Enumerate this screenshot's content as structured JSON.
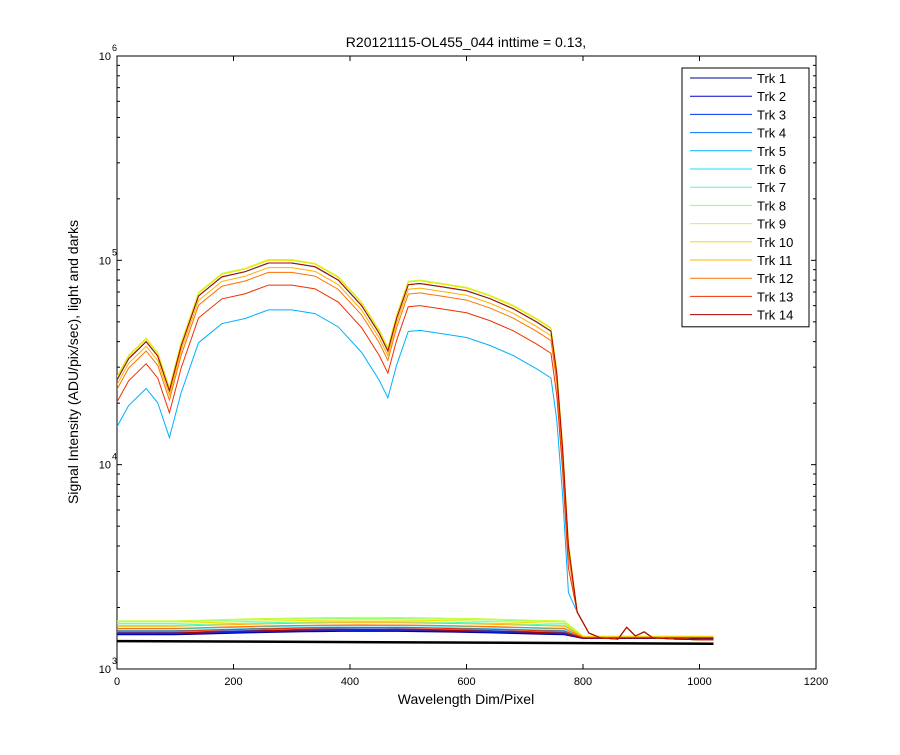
{
  "chart_data": {
    "type": "line",
    "title": "R20121115-OL455_044 inttime = 0.13,",
    "xlabel": "Wavelength Dim/Pixel",
    "ylabel": "Signal Intensity (ADU/pix/sec), light and darks",
    "xlim": [
      0,
      1200
    ],
    "ylim": [
      1000,
      1000000
    ],
    "yscale": "log",
    "grid": false,
    "legend_position": "top-right",
    "x_ticks": [
      0,
      200,
      400,
      600,
      800,
      1000,
      1200
    ],
    "x_tick_labels": [
      "0",
      "200",
      "400",
      "600",
      "800",
      "1000",
      "1200"
    ],
    "y_ticks": [
      {
        "value": 1000,
        "base": "10",
        "exp": "3"
      },
      {
        "value": 10000,
        "base": "10",
        "exp": "4"
      },
      {
        "value": 100000,
        "base": "10",
        "exp": "5"
      },
      {
        "value": 1000000,
        "base": "10",
        "exp": "6"
      }
    ],
    "light_x": [
      0,
      20,
      50,
      70,
      90,
      110,
      140,
      180,
      220,
      260,
      300,
      340,
      380,
      420,
      450,
      465,
      480,
      500,
      520,
      560,
      600,
      640,
      680,
      720,
      745,
      755,
      765,
      775,
      790,
      810,
      830,
      860,
      875,
      890,
      905,
      920,
      960,
      1000,
      1024
    ],
    "light_y": [
      26000,
      33000,
      40000,
      34000,
      23000,
      38000,
      67000,
      83000,
      88000,
      97000,
      97000,
      93000,
      80000,
      60000,
      44000,
      36000,
      52000,
      76000,
      77000,
      74000,
      71000,
      65000,
      58000,
      50000,
      45000,
      28000,
      12000,
      4000,
      1900,
      1500,
      1420,
      1400,
      1600,
      1450,
      1520,
      1420,
      1400,
      1390,
      1390
    ],
    "series": [
      {
        "name": "Trk 1",
        "color": "#00008f",
        "scale": 1.0,
        "dark": 1470
      },
      {
        "name": "Trk 2",
        "color": "#0000c8",
        "scale": 1.0,
        "dark": 1480
      },
      {
        "name": "Trk 3",
        "color": "#0033ff",
        "scale": 1.0,
        "dark": 1490
      },
      {
        "name": "Trk 4",
        "color": "#0070ff",
        "scale": 1.0,
        "dark": 1510
      },
      {
        "name": "Trk 5",
        "color": "#00b0ff",
        "scale": 0.59,
        "dark": 1540
      },
      {
        "name": "Trk 6",
        "color": "#10e0f0",
        "scale": 1.0,
        "dark": 1570
      },
      {
        "name": "Trk 7",
        "color": "#50ffb0",
        "scale": 1.0,
        "dark": 1640
      },
      {
        "name": "Trk 8",
        "color": "#90ff70",
        "scale": 1.0,
        "dark": 1700
      },
      {
        "name": "Trk 9",
        "color": "#c8ff30",
        "scale": 1.04,
        "dark": 1720
      },
      {
        "name": "Trk 10",
        "color": "#f0e000",
        "scale": 1.03,
        "dark": 1670
      },
      {
        "name": "Trk 11",
        "color": "#ffb000",
        "scale": 0.95,
        "dark": 1620
      },
      {
        "name": "Trk 12",
        "color": "#ff7000",
        "scale": 0.9,
        "dark": 1580
      },
      {
        "name": "Trk 13",
        "color": "#f03000",
        "scale": 0.78,
        "dark": 1530
      },
      {
        "name": "Trk 14",
        "color": "#b00000",
        "scale": 1.0,
        "dark": 1500
      }
    ],
    "black_baseline": [
      1370,
      1330
    ]
  }
}
